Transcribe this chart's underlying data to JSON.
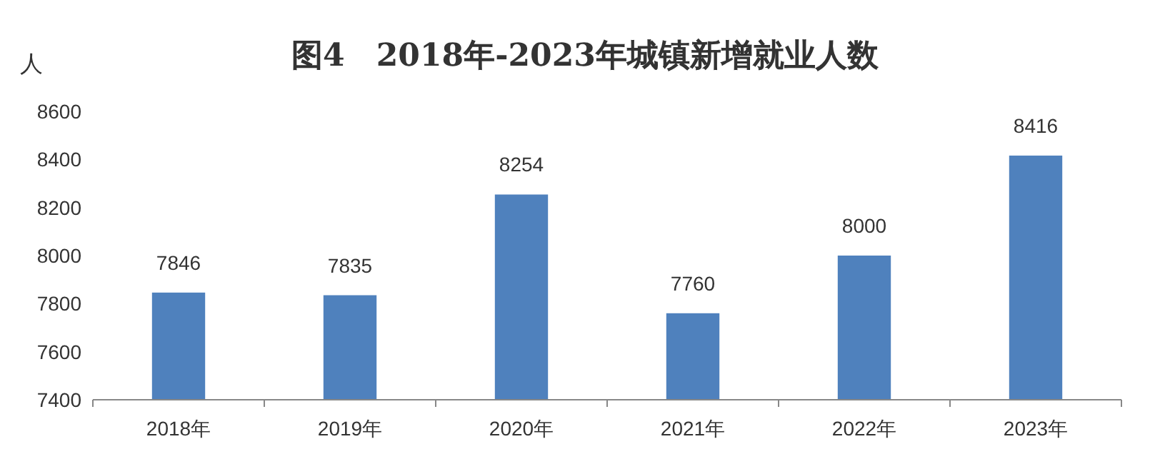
{
  "chart_data": {
    "type": "bar",
    "title": "图4　2018年-2023年城镇新增就业人数",
    "ylabel": "人",
    "categories": [
      "2018年",
      "2019年",
      "2020年",
      "2021年",
      "2022年",
      "2023年"
    ],
    "values": [
      7846,
      7835,
      8254,
      7760,
      8000,
      8416
    ],
    "color": "#4f81bd",
    "ylim": [
      7400,
      8600
    ],
    "yticks": [
      7400,
      7600,
      7800,
      8000,
      8200,
      8400,
      8600
    ],
    "data_labels": true
  }
}
